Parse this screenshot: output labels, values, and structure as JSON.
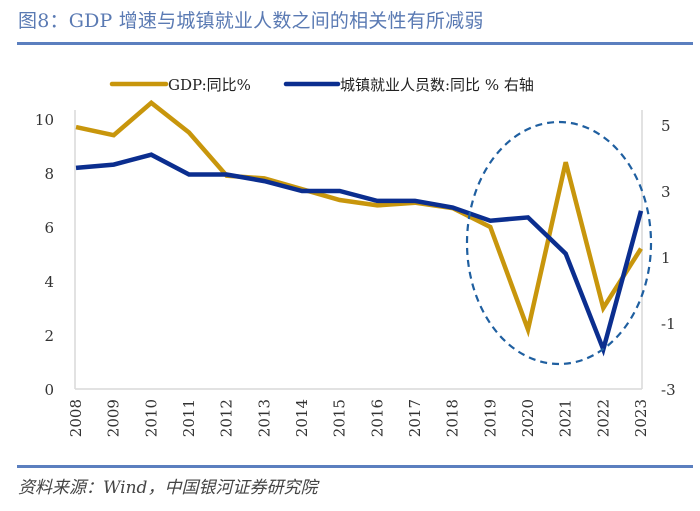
{
  "header": {
    "title": "图8：GDP 增速与城镇就业人数之间的相关性有所减弱"
  },
  "footer": {
    "source": "资料来源：Wind，中国银河证券研究院"
  },
  "colors": {
    "gdp": "#c8960c",
    "employment": "#0b2e8f",
    "ellipse": "#1f5fa0",
    "rule": "#5b7fbf",
    "axis": "#d9d9d9"
  },
  "chart_data": {
    "type": "line",
    "title": "GDP 增速与城镇就业人数之间的相关性有所减弱",
    "x": [
      "2008",
      "2009",
      "2010",
      "2011",
      "2012",
      "2013",
      "2014",
      "2015",
      "2016",
      "2017",
      "2018",
      "2019",
      "2020",
      "2021",
      "2022",
      "2023"
    ],
    "series": [
      {
        "name": "GDP:同比%",
        "axis": "left",
        "values": [
          9.7,
          9.4,
          10.6,
          9.5,
          7.9,
          7.8,
          7.4,
          7.0,
          6.8,
          6.9,
          6.7,
          6.0,
          2.2,
          8.4,
          3.0,
          5.2
        ]
      },
      {
        "name": "城镇就业人员数:同比 % 右轴",
        "axis": "right",
        "values": [
          3.7,
          3.8,
          4.1,
          3.5,
          3.5,
          3.3,
          3.0,
          3.0,
          2.7,
          2.7,
          2.5,
          2.1,
          2.2,
          1.1,
          -1.8,
          2.4
        ]
      }
    ],
    "left_axis": {
      "ylim": [
        0,
        10.8
      ],
      "ticks": [
        "0",
        "2",
        "4",
        "6",
        "8",
        "10"
      ],
      "tick_values": [
        0,
        2,
        4,
        6,
        8,
        10
      ]
    },
    "right_axis": {
      "ylim": [
        -3,
        5.5
      ],
      "ticks": [
        "-3",
        "-1",
        "1",
        "3",
        "5"
      ],
      "tick_values": [
        -3,
        -1,
        1,
        3,
        5
      ]
    },
    "legend": {
      "position": "top-center",
      "entries": [
        "GDP:同比%",
        "城镇就业人员数:同比 % 右轴"
      ]
    },
    "annotations": [
      {
        "type": "dashed-ellipse",
        "covers_x": [
          "2019",
          "2023"
        ],
        "note": "highlights 2019–2023 divergence"
      }
    ],
    "grid": false,
    "xlabel": "",
    "ylabel": ""
  }
}
